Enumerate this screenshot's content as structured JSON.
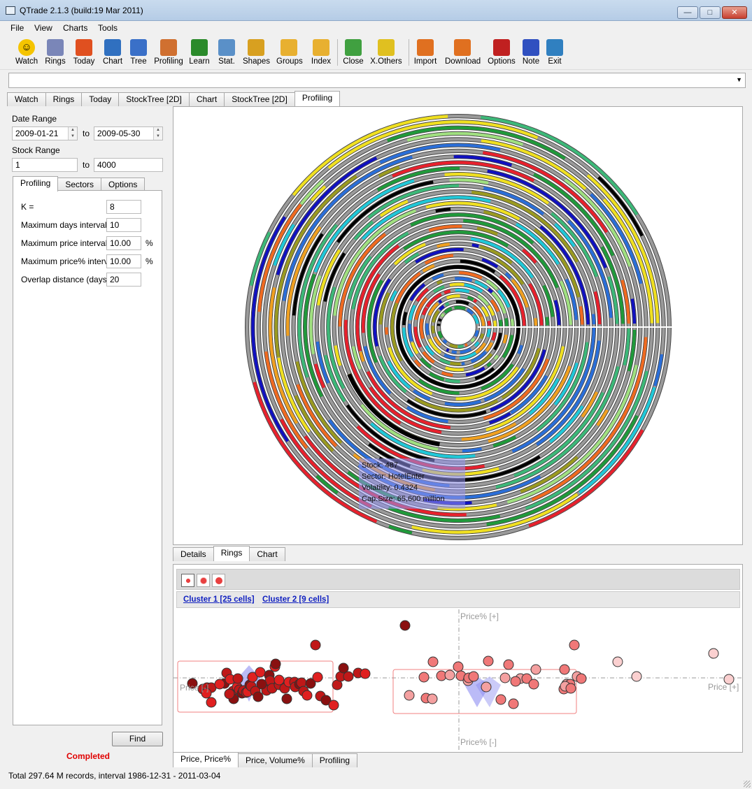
{
  "window": {
    "title": "QTrade 2.1.3 (build:19 Mar 2011)"
  },
  "menu": [
    "File",
    "View",
    "Charts",
    "Tools"
  ],
  "toolbar": [
    {
      "label": "Watch",
      "icon": "smiley-icon",
      "color": "#f5c400"
    },
    {
      "label": "Rings",
      "icon": "house-icon",
      "color": "#7a86b8"
    },
    {
      "label": "Today",
      "icon": "alarm-clock-icon",
      "color": "#e05020"
    },
    {
      "label": "Chart",
      "icon": "bar-chart-icon",
      "color": "#3070c0"
    },
    {
      "label": "Tree",
      "icon": "tree-icon",
      "color": "#3a70c8"
    },
    {
      "label": "Profiling",
      "icon": "profiling-icon",
      "color": "#d07030"
    },
    {
      "label": "Learn",
      "icon": "book-icon",
      "color": "#2a8a2a"
    },
    {
      "label": "Stat.",
      "icon": "stats-icon",
      "color": "#5a90c8"
    },
    {
      "label": "Shapes",
      "icon": "shapes-icon",
      "color": "#d8a020"
    },
    {
      "label": "Groups",
      "icon": "folder-icon",
      "color": "#e8b030"
    },
    {
      "label": "Index",
      "icon": "folder-icon",
      "color": "#e8b030"
    },
    {
      "label": "Close",
      "icon": "close-doc-icon",
      "color": "#40a040"
    },
    {
      "label": "X.Others",
      "icon": "x-others-icon",
      "color": "#e0c020"
    },
    {
      "label": "Import",
      "icon": "import-icon",
      "color": "#e07020"
    },
    {
      "label": "Download",
      "icon": "download-icon",
      "color": "#e07020"
    },
    {
      "label": "Options",
      "icon": "options-icon",
      "color": "#c02020"
    },
    {
      "label": "Note",
      "icon": "paperclip-icon",
      "color": "#3050c0"
    },
    {
      "label": "Exit",
      "icon": "exit-door-icon",
      "color": "#3080c0"
    }
  ],
  "main_tabs": [
    {
      "label": "Watch",
      "active": false
    },
    {
      "label": "Rings",
      "active": false
    },
    {
      "label": "Today",
      "active": false
    },
    {
      "label": "StockTree [2D]",
      "active": false
    },
    {
      "label": "Chart",
      "active": false
    },
    {
      "label": "StockTree [2D]",
      "active": false
    },
    {
      "label": "Profiling",
      "active": true
    }
  ],
  "left": {
    "date_range_label": "Date Range",
    "date_from": "2009-01-21",
    "date_to": "2009-05-30",
    "to1": "to",
    "stock_range_label": "Stock Range",
    "stock_from": "1",
    "stock_to": "4000",
    "to2": "to",
    "subtabs": [
      {
        "label": "Profiling",
        "active": true
      },
      {
        "label": "Sectors",
        "active": false
      },
      {
        "label": "Options",
        "active": false
      }
    ],
    "params": [
      {
        "label": "K =",
        "value": "8",
        "unit": ""
      },
      {
        "label": "Maximum days interval",
        "value": "10",
        "unit": ""
      },
      {
        "label": "Maximum price interval",
        "value": "10.00",
        "unit": "%"
      },
      {
        "label": "Maximum price% interva",
        "value": "10.00",
        "unit": "%"
      },
      {
        "label": "Overlap distance (days)",
        "value": "20",
        "unit": ""
      }
    ],
    "find_label": "Find",
    "status": "Completed"
  },
  "tooltip": {
    "stock": "Stock: 487",
    "sector": "Sector: HotelEnter",
    "volatility": "Volatility: 0.4324",
    "cap": "Cap.Size: 65,600 million"
  },
  "lower_tabs": [
    {
      "label": "Details",
      "active": false
    },
    {
      "label": "Rings",
      "active": true
    },
    {
      "label": "Chart",
      "active": false
    }
  ],
  "clusters": {
    "c1": "Cluster 1 [25 cells]",
    "c2": "Cluster 2 [9 cells]"
  },
  "scatter_axes": {
    "top": "Price% [+]",
    "bottom": "Price% [-]",
    "left": "Price [-]",
    "right": "Price [+]"
  },
  "bottom_tabs": [
    {
      "label": "Price, Price%",
      "active": true
    },
    {
      "label": "Price, Volume%",
      "active": false
    },
    {
      "label": "Profiling",
      "active": false
    }
  ],
  "status_bar": "Total 297.64 M records, interval 1986-12-31 - 2011-03-04",
  "colors": {
    "ring_gray": "#9a9a9a",
    "segments": [
      "#e8202c",
      "#2a6ed8",
      "#1f9a3a",
      "#f0a020",
      "#20c8d8",
      "#9a9a20",
      "#a0e080",
      "#f06a20",
      "#1010c0",
      "#3cb878",
      "#f0e020",
      "#000000",
      "#2a5a40"
    ],
    "cluster1": "#c01818",
    "cluster2": "#f07878",
    "tooltip_bg": "#9696f0"
  }
}
